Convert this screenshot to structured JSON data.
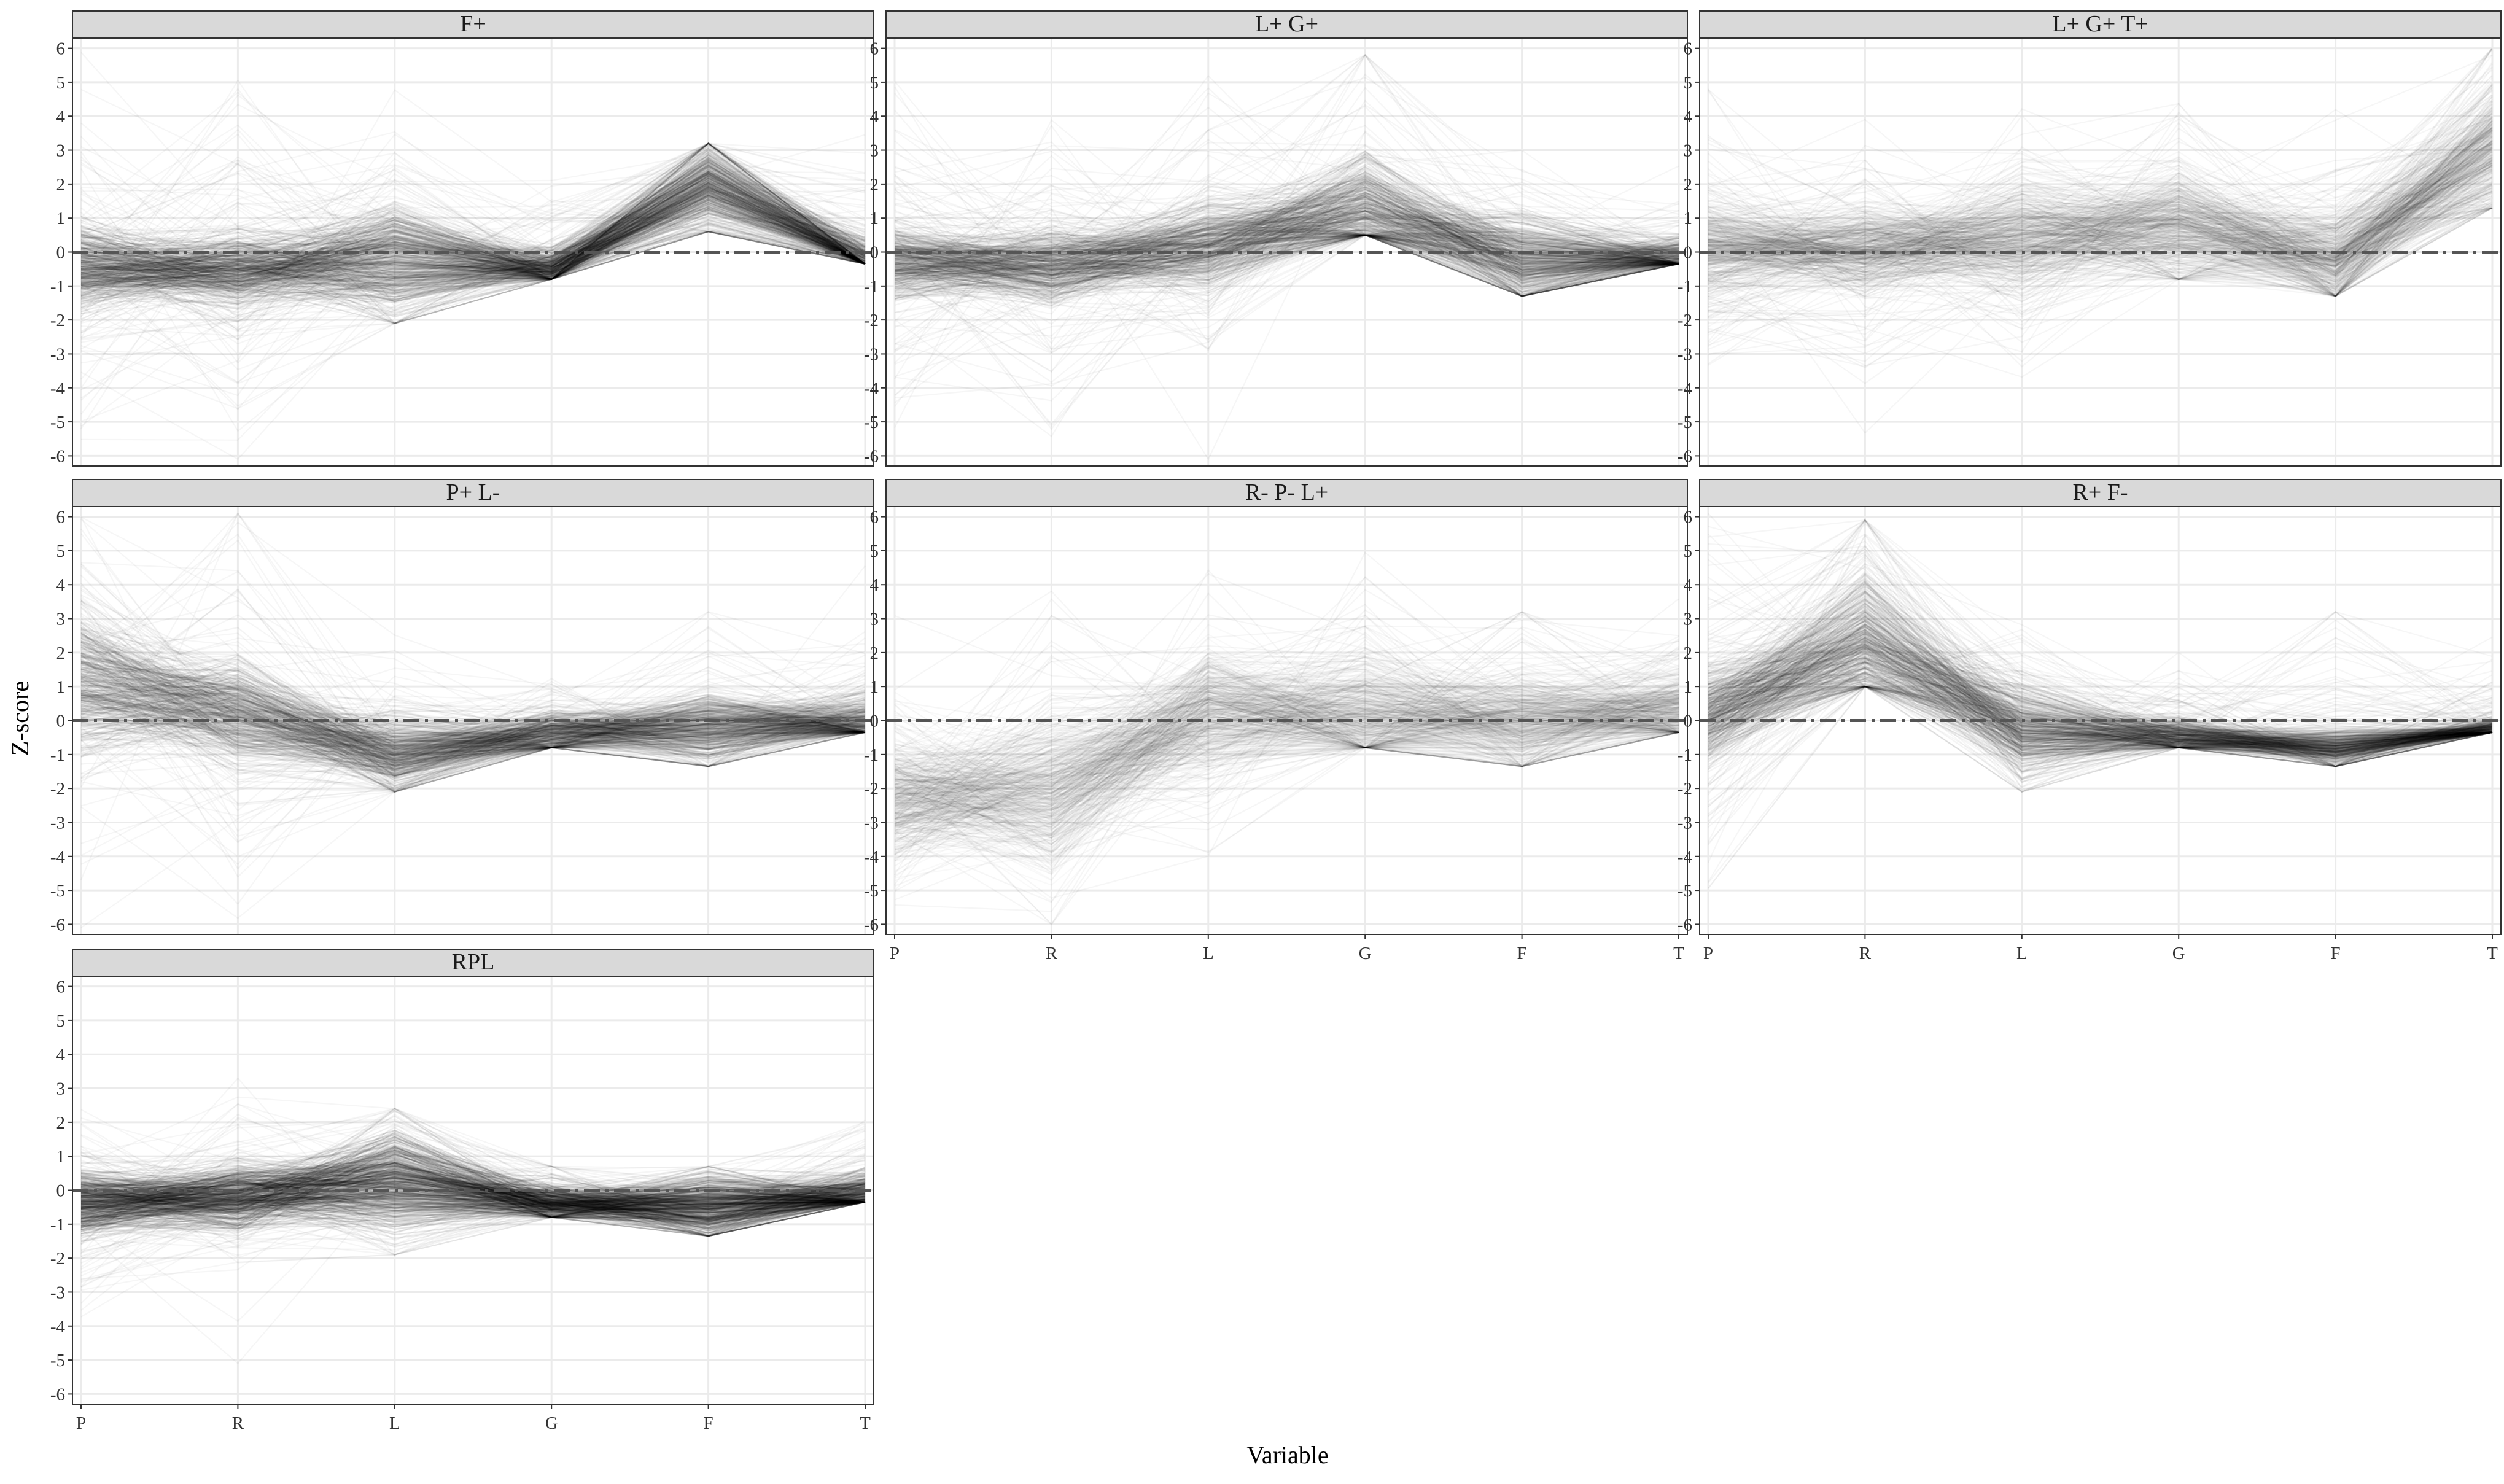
{
  "chart_data": {
    "type": "line",
    "description_kind": "parallel coordinates, faceted",
    "xlabel": "Variable",
    "ylabel": "Z-score",
    "ylim": [
      -6.3,
      6.3
    ],
    "yticks": [
      -6,
      -5,
      -4,
      -3,
      -2,
      -1,
      0,
      1,
      2,
      3,
      4,
      5,
      6
    ],
    "grid": true,
    "reference_line": {
      "y": 0,
      "style": "dash-dot"
    },
    "colors": {
      "line": "#000000",
      "strip_fill": "#d9d9d9",
      "reference": "#555555",
      "grid": "#ebebeb"
    },
    "facets": [
      {
        "title": "F+",
        "variables": [
          "P",
          "R",
          "L",
          "G",
          "F",
          "T"
        ],
        "center": [
          -0.4,
          -0.5,
          -0.2,
          -0.5,
          2.0,
          -0.3
        ],
        "spread": [
          0.7,
          0.6,
          0.9,
          0.3,
          0.7,
          0.4
        ],
        "outer_spread": [
          2.5,
          2.6,
          2.0,
          1.4,
          1.5,
          1.6
        ],
        "min": [
          null,
          null,
          -2.1,
          -0.8,
          0.6,
          -0.35
        ],
        "max": [
          null,
          null,
          null,
          null,
          3.2,
          null
        ],
        "density": 0.55
      },
      {
        "title": "L+ G+",
        "variables": [
          "P",
          "R",
          "L",
          "G",
          "F",
          "T"
        ],
        "center": [
          -0.3,
          -0.4,
          0.2,
          1.2,
          -0.3,
          -0.3
        ],
        "spread": [
          0.6,
          0.6,
          0.7,
          0.9,
          0.7,
          0.4
        ],
        "outer_spread": [
          2.5,
          2.5,
          2.3,
          2.9,
          1.6,
          1.2
        ],
        "min": [
          null,
          null,
          null,
          0.5,
          -1.3,
          -0.35
        ],
        "max": [
          null,
          null,
          null,
          5.8,
          null,
          null
        ],
        "density": 0.5
      },
      {
        "title": "L+ G+ T+",
        "variables": [
          "P",
          "R",
          "L",
          "G",
          "F",
          "T"
        ],
        "center": [
          0.1,
          0.1,
          0.4,
          0.8,
          -0.2,
          3.0
        ],
        "spread": [
          0.8,
          0.7,
          0.9,
          0.9,
          0.8,
          1.0
        ],
        "outer_spread": [
          2.3,
          2.2,
          2.0,
          2.2,
          2.2,
          2.0
        ],
        "min": [
          null,
          null,
          null,
          -0.8,
          -1.3,
          1.3
        ],
        "max": [
          null,
          null,
          null,
          null,
          null,
          6.0
        ],
        "density": 0.3
      },
      {
        "title": "P+ L-",
        "variables": [
          "P",
          "R",
          "L",
          "G",
          "F",
          "T"
        ],
        "center": [
          1.2,
          0.3,
          -1.0,
          -0.4,
          -0.2,
          -0.1
        ],
        "spread": [
          1.2,
          0.8,
          0.6,
          0.4,
          0.6,
          0.5
        ],
        "outer_spread": [
          3.5,
          3.0,
          1.5,
          1.2,
          2.2,
          1.6
        ],
        "min": [
          null,
          null,
          -2.1,
          -0.8,
          -1.35,
          -0.35
        ],
        "max": [
          6.0,
          null,
          null,
          null,
          3.2,
          null
        ],
        "density": 0.5
      },
      {
        "title": "R- P- L+",
        "variables": [
          "P",
          "R",
          "L",
          "G",
          "F",
          "T"
        ],
        "center": [
          -2.3,
          -2.0,
          0.2,
          0.2,
          0.0,
          0.3
        ],
        "spread": [
          0.9,
          1.3,
          0.9,
          0.9,
          0.7,
          0.7
        ],
        "outer_spread": [
          2.2,
          2.3,
          2.0,
          2.5,
          2.4,
          1.8
        ],
        "min": [
          -6.0,
          -6.0,
          null,
          -0.8,
          -1.35,
          -0.35
        ],
        "max": [
          null,
          null,
          null,
          5.0,
          3.2,
          null
        ],
        "density": 0.25
      },
      {
        "title": "R+ F-",
        "variables": [
          "P",
          "R",
          "L",
          "G",
          "F",
          "T"
        ],
        "center": [
          0.2,
          2.3,
          -0.3,
          -0.5,
          -0.8,
          -0.3
        ],
        "spread": [
          0.8,
          1.1,
          0.7,
          0.3,
          0.3,
          0.2
        ],
        "outer_spread": [
          3.0,
          3.0,
          1.8,
          1.2,
          2.2,
          1.4
        ],
        "min": [
          null,
          1.0,
          -2.1,
          -0.8,
          -1.35,
          -0.35
        ],
        "max": [
          null,
          5.9,
          null,
          null,
          3.2,
          null
        ],
        "density": 0.5
      },
      {
        "title": "RPL",
        "variables": [
          "P",
          "R",
          "L",
          "G",
          "F",
          "T"
        ],
        "center": [
          -0.4,
          -0.2,
          0.3,
          -0.4,
          -0.5,
          -0.2
        ],
        "spread": [
          0.5,
          0.5,
          0.8,
          0.3,
          0.5,
          0.4
        ],
        "outer_spread": [
          1.6,
          1.6,
          1.8,
          0.9,
          1.1,
          1.4
        ],
        "min": [
          null,
          null,
          -1.9,
          -0.8,
          -1.35,
          -0.35
        ],
        "max": [
          null,
          null,
          2.4,
          0.7,
          0.7,
          null
        ],
        "density": 0.75
      }
    ]
  }
}
